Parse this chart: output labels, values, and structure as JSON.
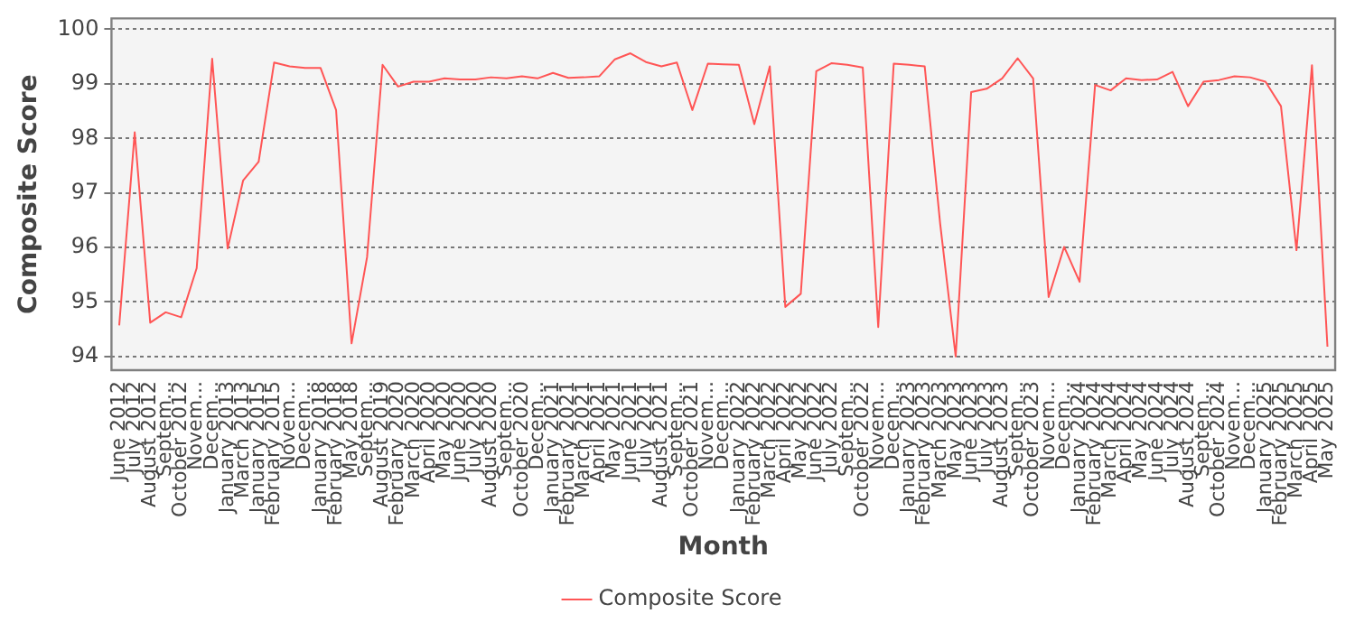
{
  "chart_data": {
    "type": "line",
    "xlabel": "Month",
    "ylabel": "Composite Score",
    "categories": [
      "June 2012",
      "July 2012",
      "August 2012",
      "Septem...",
      "October 2012",
      "Novem...",
      "Decem...",
      "January 2013",
      "March 2013",
      "January 2015",
      "February 2015",
      "Novem...",
      "Decem...",
      "January 2018",
      "February 2018",
      "May 2018",
      "Septem...",
      "August 2019",
      "February 2020",
      "March 2020",
      "April 2020",
      "May 2020",
      "June 2020",
      "July 2020",
      "August 2020",
      "Septem...",
      "October 2020",
      "Decem...",
      "January 2021",
      "February 2021",
      "March 2021",
      "April 2021",
      "May 2021",
      "June 2021",
      "July 2021",
      "August 2021",
      "Septem...",
      "October 2021",
      "Novem...",
      "Decem...",
      "January 2022",
      "February 2022",
      "March 2022",
      "April 2022",
      "May 2022",
      "June 2022",
      "July 2022",
      "Septem...",
      "October 2022",
      "Novem...",
      "Decem...",
      "January 2023",
      "February 2023",
      "March 2023",
      "May 2023",
      "June 2023",
      "July 2023",
      "August 2023",
      "Septem...",
      "October 2023",
      "Novem...",
      "Decem...",
      "January 2024",
      "February 2024",
      "March 2024",
      "April 2024",
      "May 2024",
      "June 2024",
      "July 2024",
      "August 2024",
      "Septem...",
      "October 2024",
      "Novem...",
      "Decem...",
      "January 2025",
      "February 2025",
      "March 2025",
      "April 2025",
      "May 2025"
    ],
    "series": [
      {
        "name": "Composite Score",
        "color": "#ff5555",
        "values": [
          94.57,
          98.11,
          94.62,
          94.81,
          94.72,
          95.62,
          99.46,
          95.98,
          97.23,
          97.57,
          99.39,
          99.32,
          99.29,
          99.29,
          98.52,
          94.24,
          95.82,
          99.35,
          98.95,
          99.04,
          99.04,
          99.1,
          99.08,
          99.08,
          99.12,
          99.1,
          99.14,
          99.1,
          99.2,
          99.11,
          99.12,
          99.14,
          99.45,
          99.56,
          99.4,
          99.32,
          99.39,
          98.52,
          99.37,
          99.36,
          99.35,
          98.26,
          99.32,
          94.91,
          95.15,
          99.23,
          99.38,
          99.35,
          99.3,
          94.54,
          99.37,
          99.35,
          99.32,
          96.43,
          94.0,
          98.85,
          98.91,
          99.1,
          99.47,
          99.1,
          95.09,
          96.01,
          95.37,
          98.98,
          98.88,
          99.1,
          99.07,
          99.08,
          99.22,
          98.59,
          99.04,
          99.07,
          99.14,
          99.12,
          99.04,
          98.59,
          95.95,
          99.34,
          94.18
        ]
      }
    ],
    "ylim": [
      93.75,
      100.2
    ],
    "yticks": [
      94,
      95,
      96,
      97,
      98,
      99,
      100
    ],
    "grid": "y",
    "legend": "bottom",
    "marker": "none",
    "line_style": "solid"
  }
}
